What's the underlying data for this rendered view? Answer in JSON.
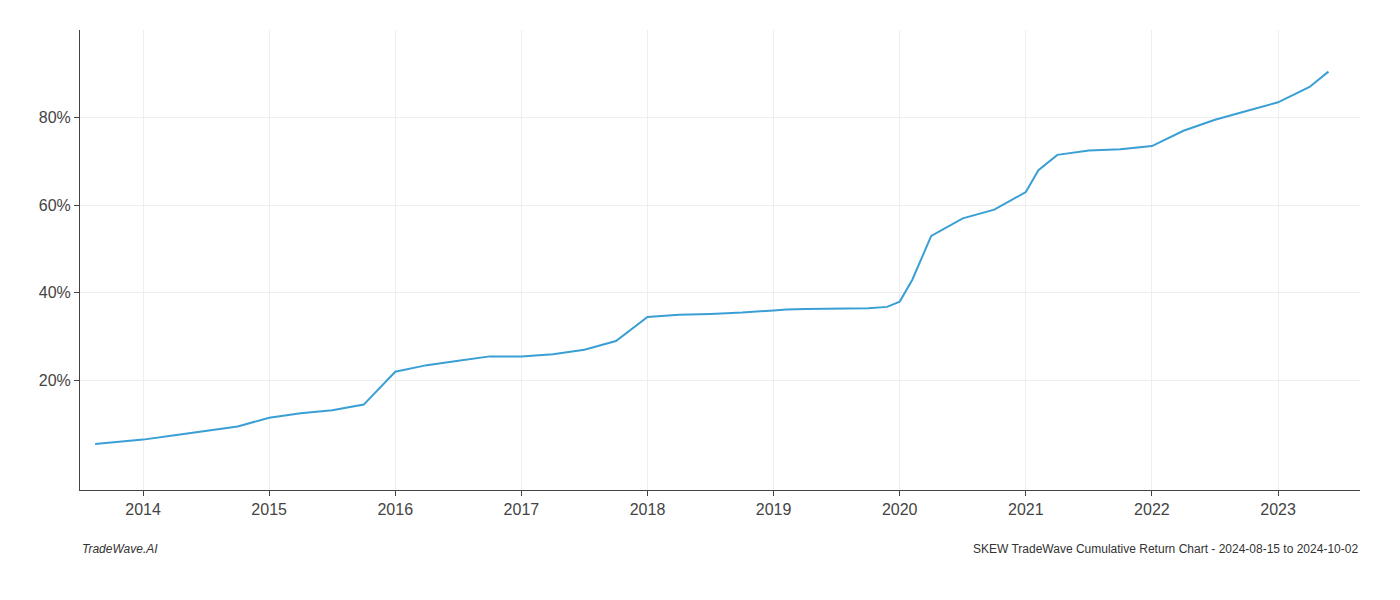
{
  "chart_data": {
    "type": "line",
    "x": [
      2013.62,
      2013.75,
      2014.0,
      2014.25,
      2014.5,
      2014.75,
      2015.0,
      2015.25,
      2015.5,
      2015.75,
      2016.0,
      2016.25,
      2016.5,
      2016.75,
      2017.0,
      2017.25,
      2017.5,
      2017.75,
      2018.0,
      2018.25,
      2018.5,
      2018.62,
      2018.75,
      2019.0,
      2019.1,
      2019.25,
      2019.5,
      2019.75,
      2019.9,
      2020.0,
      2020.1,
      2020.25,
      2020.5,
      2020.75,
      2021.0,
      2021.1,
      2021.25,
      2021.5,
      2021.75,
      2022.0,
      2022.25,
      2022.5,
      2022.75,
      2023.0,
      2023.25,
      2023.4
    ],
    "values": [
      5.5,
      5.8,
      6.5,
      7.5,
      8.5,
      9.5,
      11.5,
      12.5,
      13.2,
      14.5,
      22.0,
      23.5,
      24.5,
      25.5,
      25.5,
      26.0,
      27.0,
      29.0,
      34.5,
      35.0,
      35.2,
      35.3,
      35.5,
      36.0,
      36.2,
      36.3,
      36.4,
      36.5,
      36.8,
      38.0,
      43.0,
      53.0,
      57.0,
      59.0,
      63.0,
      68.0,
      71.5,
      72.5,
      72.8,
      73.5,
      77.0,
      79.5,
      81.5,
      83.5,
      87.0,
      90.5
    ],
    "color": "#3a9fd4",
    "xlim": [
      2013.5,
      2023.65
    ],
    "xticks": [
      2014,
      2015,
      2016,
      2017,
      2018,
      2019,
      2020,
      2021,
      2022,
      2023
    ],
    "ylim": [
      -5,
      100
    ],
    "yticks": [
      {
        "value": 20,
        "label": "20%"
      },
      {
        "value": 40,
        "label": "40%"
      },
      {
        "value": 60,
        "label": "60%"
      },
      {
        "value": 80,
        "label": "80%"
      }
    ],
    "grid": true,
    "annotations": [
      "TradeWave.AI",
      "SKEW TradeWave Cumulative Return Chart - 2024-08-15 to 2024-10-02"
    ]
  }
}
